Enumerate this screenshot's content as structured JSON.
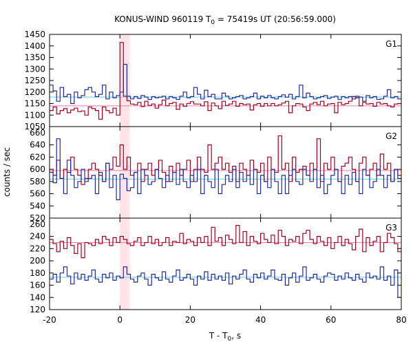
{
  "chart_data": {
    "type": "line",
    "title": "KONUS-WIND 960119 T",
    "title_sub": "0",
    "title_rest": " = 75419s UT (20:56:59.000)",
    "xlabel": "T - T",
    "xlabel_sub": "0",
    "xlabel_rest": ", s",
    "ylabel": "counts / sec",
    "xlim": [
      -20,
      80
    ],
    "xticks": [
      "-20",
      "0",
      "20",
      "40",
      "60",
      "80"
    ],
    "highlight_band": [
      0,
      2.8
    ],
    "bin_width": 1.0,
    "x_start": -20,
    "colors": {
      "red": "#a0001e",
      "blue": "#1d2a9e",
      "cyan": "#66c8e6",
      "pink": "#f07aa0",
      "band": "#fde4e8"
    },
    "panels": [
      {
        "label": "G1",
        "ylim": [
          1050,
          1450
        ],
        "yticks": [
          "1050",
          "1100",
          "1150",
          "1200",
          "1250",
          "1300",
          "1350",
          "1400",
          "1450"
        ],
        "blue_bg": 1178,
        "red_bg": 1140,
        "series": [
          {
            "name": "",
            "color": "red",
            "values": [
              1120,
              1135,
              1105,
              1120,
              1128,
              1110,
              1122,
              1130,
              1115,
              1118,
              1100,
              1135,
              1128,
              1120,
              1082,
              1135,
              1120,
              1110,
              1130,
              1100,
              1415,
              1182,
              1162,
              1148,
              1145,
              1155,
              1137,
              1160,
              1142,
              1148,
              1130,
              1145,
              1165,
              1140,
              1150,
              1155,
              1125,
              1148,
              1138,
              1150,
              1158,
              1148,
              1148,
              1140,
              1158,
              1120,
              1152,
              1140,
              1128,
              1160,
              1142,
              1148,
              1160,
              1138,
              1150,
              1145,
              1148,
              1122,
              1145,
              1150,
              1138,
              1150,
              1140,
              1150,
              1140,
              1145,
              1152,
              1160,
              1110,
              1140,
              1150,
              1148,
              1135,
              1120,
              1148,
              1155,
              1145,
              1160,
              1140,
              1148,
              1150,
              1110,
              1155,
              1145,
              1150,
              1160,
              1180,
              1175,
              1140,
              1155,
              1148,
              1150,
              1138,
              1155,
              1148,
              1150,
              1140,
              1135,
              1148,
              1150
            ]
          },
          {
            "name": "",
            "color": "blue",
            "values": [
              1230,
              1205,
              1160,
              1220,
              1180,
              1190,
              1150,
              1200,
              1175,
              1185,
              1210,
              1220,
              1200,
              1180,
              1190,
              1230,
              1170,
              1200,
              1175,
              1185,
              1200,
              1320,
              1182,
              1170,
              1180,
              1172,
              1185,
              1178,
              1168,
              1180,
              1175,
              1178,
              1182,
              1170,
              1180,
              1175,
              1168,
              1182,
              1200,
              1175,
              1180,
              1220,
              1190,
              1170,
              1208,
              1180,
              1190,
              1170,
              1170,
              1195,
              1182,
              1170,
              1175,
              1180,
              1185,
              1170,
              1175,
              1180,
              1195,
              1170,
              1182,
              1175,
              1185,
              1175,
              1170,
              1180,
              1188,
              1178,
              1190,
              1170,
              1180,
              1230,
              1175,
              1195,
              1180,
              1170,
              1175,
              1180,
              1185,
              1172,
              1178,
              1182,
              1168,
              1180,
              1175,
              1180,
              1170,
              1182,
              1178,
              1160,
              1185,
              1175,
              1180,
              1168,
              1170,
              1182,
              1210,
              1175,
              1180,
              1170
            ]
          }
        ]
      },
      {
        "label": "G2",
        "ylim": [
          520,
          670
        ],
        "yticks": [
          "520",
          "540",
          "560",
          "580",
          "600",
          "620",
          "640",
          "660"
        ],
        "blue_bg": 584,
        "red_bg": 598,
        "series": [
          {
            "name": "",
            "color": "red",
            "values": [
              600,
              590,
              615,
              585,
              600,
              595,
              620,
              600,
              590,
              575,
              585,
              600,
              610,
              600,
              590,
              580,
              610,
              600,
              620,
              605,
              640,
              600,
              620,
              590,
              595,
              610,
              580,
              600,
              610,
              590,
              600,
              615,
              595,
              580,
              605,
              595,
              610,
              590,
              600,
              615,
              580,
              600,
              620,
              600,
              595,
              640,
              600,
              610,
              620,
              600,
              610,
              595,
              605,
              580,
              610,
              600,
              590,
              615,
              600,
              595,
              610,
              580,
              620,
              600,
              595,
              655,
              600,
              610,
              580,
              620,
              595,
              600,
              605,
              590,
              610,
              600,
              650,
              580,
              610,
              600,
              620,
              600,
              580,
              605,
              610,
              620,
              600,
              580,
              610,
              620,
              590,
              600,
              610,
              590,
              625,
              600,
              610,
              580,
              600,
              590
            ]
          },
          {
            "name": "",
            "color": "blue",
            "values": [
              595,
              578,
              650,
              585,
              560,
              615,
              590,
              570,
              580,
              600,
              580,
              585,
              590,
              560,
              595,
              580,
              610,
              570,
              590,
              550,
              592,
              585,
              565,
              570,
              595,
              560,
              600,
              590,
              575,
              580,
              600,
              585,
              570,
              590,
              580,
              595,
              575,
              600,
              580,
              570,
              590,
              580,
              600,
              560,
              590,
              580,
              570,
              600,
              560,
              575,
              590,
              580,
              600,
              570,
              595,
              580,
              590,
              575,
              600,
              560,
              590,
              580,
              570,
              600,
              580,
              560,
              590,
              560,
              590,
              600,
              580,
              575,
              600,
              590,
              580,
              600,
              570,
              590,
              560,
              575,
              590,
              600,
              580,
              560,
              590,
              575,
              595,
              580,
              560,
              600,
              590,
              570,
              580,
              600,
              590,
              570,
              590,
              580,
              600,
              585
            ]
          }
        ]
      },
      {
        "label": "G3",
        "ylim": [
          120,
          270
        ],
        "yticks": [
          "120",
          "140",
          "160",
          "180",
          "200",
          "220",
          "240",
          "260"
        ],
        "blue_bg": 173,
        "red_bg": 230,
        "series": [
          {
            "name": "",
            "color": "red",
            "values": [
              235,
              228,
              215,
              232,
              220,
              238,
              225,
              212,
              228,
              205,
              230,
              228,
              225,
              235,
              228,
              240,
              235,
              225,
              238,
              230,
              240,
              235,
              228,
              225,
              232,
              238,
              225,
              230,
              240,
              228,
              235,
              225,
              230,
              238,
              225,
              232,
              230,
              245,
              228,
              235,
              232,
              225,
              238,
              230,
              240,
              225,
              255,
              232,
              238,
              225,
              242,
              235,
              228,
              258,
              230,
              248,
              225,
              240,
              232,
              228,
              245,
              235,
              230,
              242,
              228,
              250,
              240,
              225,
              235,
              232,
              240,
              228,
              245,
              250,
              235,
              228,
              240,
              232,
              225,
              238,
              220,
              230,
              240,
              225,
              235,
              228,
              218,
              240,
              252,
              215,
              238,
              225,
              232,
              240,
              215,
              230,
              245,
              238,
              228,
              215
            ]
          },
          {
            "name": "",
            "color": "blue",
            "values": [
              170,
              178,
              165,
              180,
              190,
              175,
              162,
              180,
              170,
              178,
              168,
              175,
              185,
              170,
              165,
              178,
              172,
              180,
              168,
              175,
              172,
              190,
              178,
              170,
              165,
              175,
              180,
              170,
              160,
              178,
              172,
              168,
              182,
              170,
              165,
              175,
              185,
              168,
              172,
              178,
              170,
              160,
              175,
              170,
              182,
              168,
              178,
              170,
              175,
              168,
              180,
              162,
              175,
              170,
              178,
              185,
              170,
              165,
              178,
              172,
              180,
              170,
              175,
              185,
              170,
              168,
              178,
              160,
              172,
              180,
              165,
              175,
              190,
              168,
              172,
              178,
              170,
              165,
              175,
              180,
              178,
              168,
              175,
              170,
              180,
              172,
              168,
              178,
              170,
              165,
              180,
              172,
              175,
              170,
              190,
              168,
              175,
              160,
              185,
              140
            ]
          }
        ]
      }
    ]
  }
}
